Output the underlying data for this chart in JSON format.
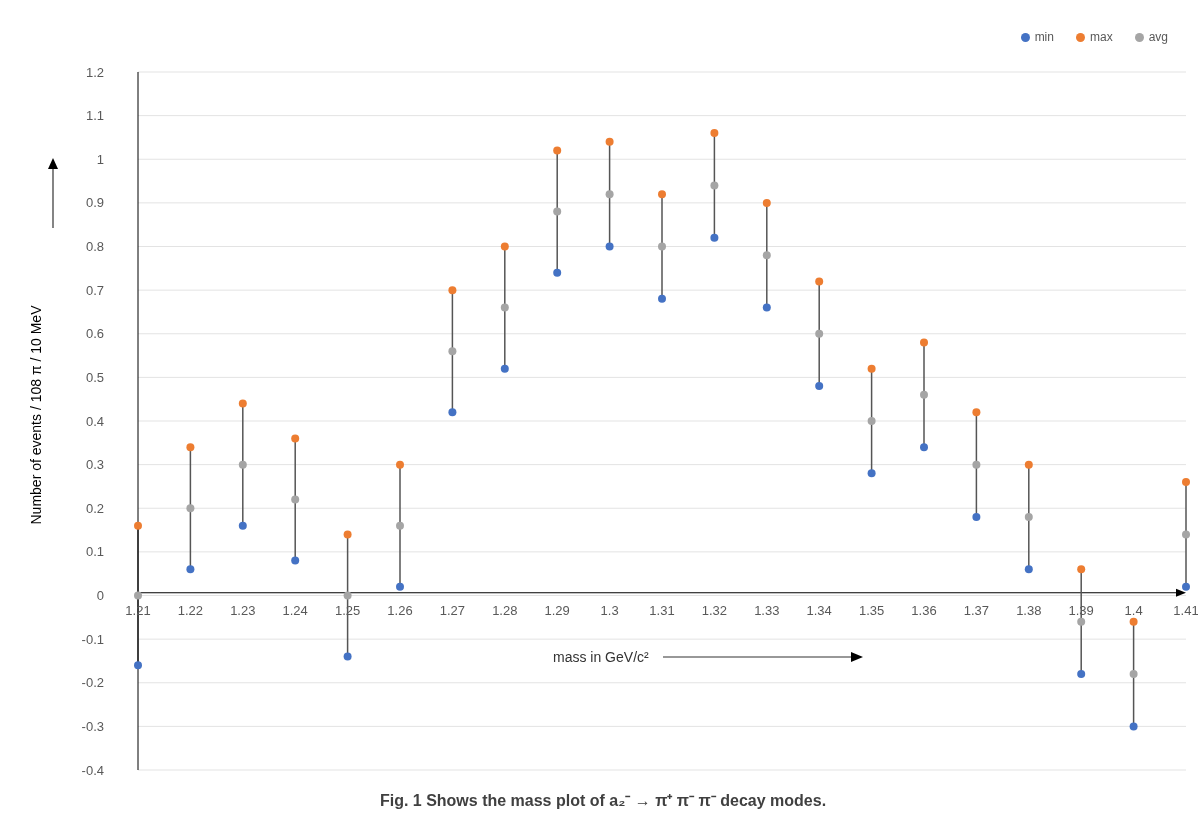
{
  "chart_data": {
    "type": "scatter",
    "xlabel": "mass in GeV/c²",
    "ylabel": "Number of events / 108 π / 10 MeV",
    "categories": [
      "1.21",
      "1.22",
      "1.23",
      "1.24",
      "1.25",
      "1.26",
      "1.27",
      "1.28",
      "1.29",
      "1.3",
      "1.31",
      "1.32",
      "1.33",
      "1.34",
      "1.35",
      "1.36",
      "1.37",
      "1.38",
      "1.39",
      "1.4",
      "1.41"
    ],
    "series": [
      {
        "name": "min",
        "color": "#4472c4",
        "values": [
          -0.16,
          0.06,
          0.16,
          0.08,
          -0.14,
          0.02,
          0.42,
          0.52,
          0.74,
          0.8,
          0.68,
          0.82,
          0.66,
          0.48,
          0.28,
          0.34,
          0.18,
          0.06,
          -0.18,
          -0.3,
          0.02
        ]
      },
      {
        "name": "max",
        "color": "#ed7d31",
        "values": [
          0.16,
          0.34,
          0.44,
          0.36,
          0.14,
          0.3,
          0.7,
          0.8,
          1.02,
          1.04,
          0.92,
          1.06,
          0.9,
          0.72,
          0.52,
          0.58,
          0.42,
          0.3,
          0.06,
          -0.06,
          0.26
        ]
      },
      {
        "name": "avg",
        "color": "#a5a5a5",
        "values": [
          0,
          0.2,
          0.3,
          0.22,
          0,
          0.16,
          0.56,
          0.66,
          0.88,
          0.92,
          0.8,
          0.94,
          0.78,
          0.6,
          0.4,
          0.46,
          0.3,
          0.18,
          -0.06,
          -0.18,
          0.14
        ],
        "errors": [
          [
            0.16,
            0.16
          ],
          [
            0.14,
            0.14
          ],
          [
            0.14,
            0.14
          ],
          [
            0.14,
            0.14
          ],
          [
            0.14,
            0.14
          ],
          [
            0.14,
            0.14
          ],
          [
            0.14,
            0.14
          ],
          [
            0.14,
            0.14
          ],
          [
            0.14,
            0.14
          ],
          [
            0.12,
            0.12
          ],
          [
            0.12,
            0.12
          ],
          [
            0.12,
            0.12
          ],
          [
            0.12,
            0.12
          ],
          [
            0.12,
            0.12
          ],
          [
            0.12,
            0.12
          ],
          [
            0.12,
            0.12
          ],
          [
            0.12,
            0.12
          ],
          [
            0.12,
            0.12
          ],
          [
            0.12,
            0.12
          ],
          [
            0.12,
            0.12
          ],
          [
            0.12,
            0.12
          ]
        ]
      }
    ],
    "ylim": [
      -0.4,
      1.2
    ],
    "yticks": [
      -0.4,
      -0.3,
      -0.2,
      -0.1,
      0,
      0.1,
      0.2,
      0.3,
      0.4,
      0.5,
      0.6,
      0.7,
      0.8,
      0.9,
      1,
      1.1,
      1.2
    ],
    "grid": "y",
    "legend": "top right",
    "marker": "circle",
    "annotations": [
      "Fig. 1 Shows the mass plot of a₂⁻ → π⁺ π⁻ π⁻ decay modes."
    ]
  }
}
